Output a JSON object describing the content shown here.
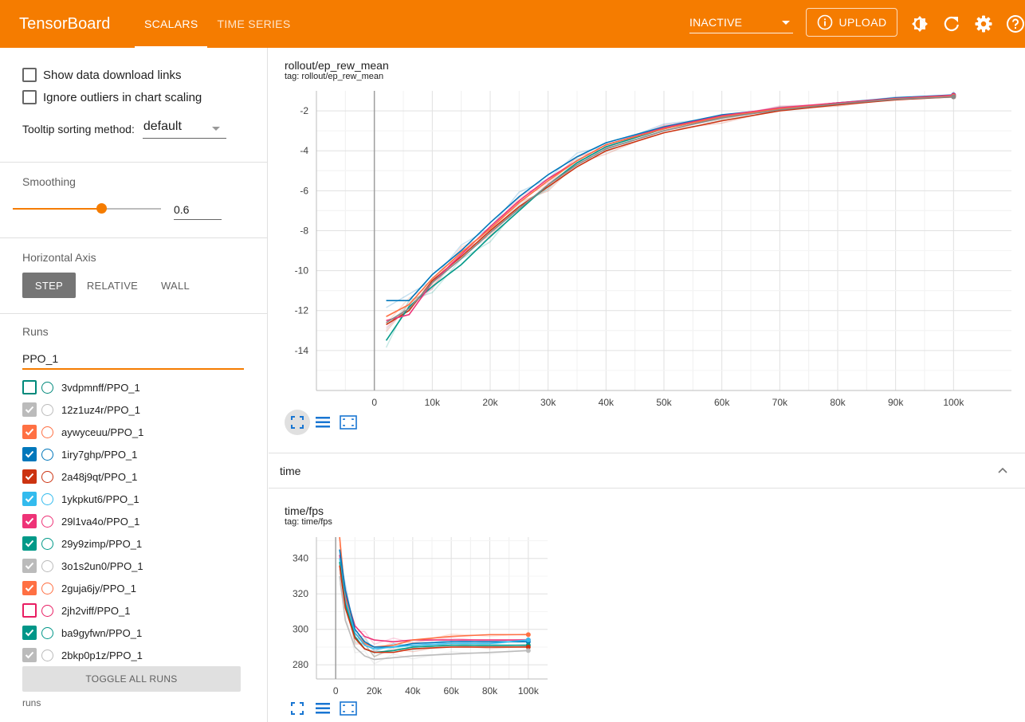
{
  "header": {
    "brand": "TensorBoard",
    "tabs": [
      {
        "label": "SCALARS",
        "active": true
      },
      {
        "label": "TIME SERIES",
        "active": false
      }
    ],
    "status": "INACTIVE",
    "upload_label": "UPLOAD",
    "icons": [
      "info-icon",
      "theme-toggle-icon",
      "refresh-icon",
      "settings-icon",
      "help-icon"
    ]
  },
  "sidebar": {
    "show_download_links": "Show data download links",
    "ignore_outliers": "Ignore outliers in chart scaling",
    "tooltip_label": "Tooltip sorting method:",
    "tooltip_value": "default",
    "smoothing_title": "Smoothing",
    "smoothing_value": "0.6",
    "smoothing_fraction": 0.6,
    "axis_title": "Horizontal Axis",
    "axis_options": [
      "STEP",
      "RELATIVE",
      "WALL"
    ],
    "axis_selected": "STEP",
    "runs_title": "Runs",
    "runs_filter": "PPO_1",
    "runs": [
      {
        "name": "3vdpmnff/PPO_1",
        "checked": false,
        "color": "#00897b"
      },
      {
        "name": "12z1uz4r/PPO_1",
        "checked": true,
        "color": "#bbbbbb"
      },
      {
        "name": "aywyceuu/PPO_1",
        "checked": true,
        "color": "#ff7043"
      },
      {
        "name": "1iry7ghp/PPO_1",
        "checked": true,
        "color": "#0077bb"
      },
      {
        "name": "2a48j9qt/PPO_1",
        "checked": true,
        "color": "#cc3311"
      },
      {
        "name": "1ykpkut6/PPO_1",
        "checked": true,
        "color": "#33bbee"
      },
      {
        "name": "29l1va4o/PPO_1",
        "checked": true,
        "color": "#ee3377"
      },
      {
        "name": "29y9zimp/PPO_1",
        "checked": true,
        "color": "#009988"
      },
      {
        "name": "3o1s2un0/PPO_1",
        "checked": true,
        "color": "#bbbbbb"
      },
      {
        "name": "2guja6jy/PPO_1",
        "checked": true,
        "color": "#ff7043"
      },
      {
        "name": "2jh2viff/PPO_1",
        "checked": false,
        "color": "#e91e63"
      },
      {
        "name": "ba9gyfwn/PPO_1",
        "checked": true,
        "color": "#009688"
      },
      {
        "name": "2bkp0p1z/PPO_1",
        "checked": true,
        "color": "#bbbbbb"
      }
    ],
    "toggle_all": "TOGGLE ALL RUNS",
    "runs_footer": "runs"
  },
  "main": {
    "chart1_title": "rollout/ep_rew_mean",
    "chart1_tag": "tag: rollout/ep_rew_mean",
    "time_section": "time",
    "chart2_title": "time/fps",
    "chart2_tag": "tag: time/fps"
  },
  "chart_data": [
    {
      "type": "line",
      "xlim": [
        -10000,
        110000
      ],
      "ylim": [
        -16,
        -1
      ],
      "x_ticks": [
        0,
        10000,
        20000,
        30000,
        40000,
        50000,
        60000,
        70000,
        80000,
        90000,
        100000
      ],
      "x_tick_labels": [
        "0",
        "10k",
        "20k",
        "30k",
        "40k",
        "50k",
        "60k",
        "70k",
        "80k",
        "90k",
        "100k"
      ],
      "y_ticks": [
        -2,
        -4,
        -6,
        -8,
        -10,
        -12,
        -14
      ],
      "y_tick_labels": [
        "-2",
        "-4",
        "-6",
        "-8",
        "-10",
        "-12",
        "-14"
      ],
      "grid": true,
      "series": [
        {
          "color": "#0077bb",
          "x": [
            2048,
            6000,
            10000,
            15000,
            20000,
            25000,
            30000,
            35000,
            40000,
            50000,
            60000,
            70000,
            80000,
            90000,
            100000
          ],
          "y": [
            -11.5,
            -11.5,
            -10.2,
            -9.0,
            -7.6,
            -6.3,
            -5.2,
            -4.3,
            -3.6,
            -2.8,
            -2.2,
            -1.9,
            -1.6,
            -1.35,
            -1.2
          ]
        },
        {
          "color": "#cc3311",
          "x": [
            2048,
            6000,
            10000,
            15000,
            20000,
            25000,
            30000,
            35000,
            40000,
            50000,
            60000,
            70000,
            80000,
            90000,
            100000
          ],
          "y": [
            -12.7,
            -12.0,
            -10.5,
            -9.3,
            -8.0,
            -6.8,
            -5.8,
            -4.8,
            -4.0,
            -3.1,
            -2.5,
            -2.0,
            -1.7,
            -1.45,
            -1.3
          ]
        },
        {
          "color": "#009988",
          "x": [
            2048,
            6000,
            10000,
            15000,
            20000,
            25000,
            30000,
            35000,
            40000,
            50000,
            60000,
            70000,
            80000,
            90000,
            100000
          ],
          "y": [
            -13.5,
            -11.8,
            -10.8,
            -9.7,
            -8.3,
            -7.0,
            -5.7,
            -4.6,
            -3.8,
            -2.9,
            -2.3,
            -1.9,
            -1.6,
            -1.4,
            -1.25
          ]
        },
        {
          "color": "#ee3377",
          "x": [
            2048,
            6000,
            10000,
            15000,
            20000,
            25000,
            30000,
            35000,
            40000,
            50000,
            60000,
            70000,
            80000,
            90000,
            100000
          ],
          "y": [
            -12.5,
            -12.2,
            -10.6,
            -9.2,
            -7.8,
            -6.5,
            -5.4,
            -4.5,
            -3.7,
            -2.85,
            -2.25,
            -1.85,
            -1.6,
            -1.38,
            -1.22
          ]
        },
        {
          "color": "#ff7043",
          "x": [
            2048,
            6000,
            10000,
            15000,
            20000,
            25000,
            30000,
            35000,
            40000,
            50000,
            60000,
            70000,
            80000,
            90000,
            100000
          ],
          "y": [
            -12.3,
            -11.7,
            -10.4,
            -9.1,
            -7.9,
            -6.6,
            -5.5,
            -4.5,
            -3.7,
            -2.9,
            -2.3,
            -1.9,
            -1.65,
            -1.4,
            -1.27
          ]
        },
        {
          "color": "#888888",
          "x": [
            2048,
            6000,
            10000,
            15000,
            20000,
            25000,
            30000,
            35000,
            40000,
            50000,
            60000,
            70000,
            80000,
            90000,
            100000
          ],
          "y": [
            -12.6,
            -11.9,
            -10.6,
            -9.4,
            -8.1,
            -6.9,
            -5.7,
            -4.7,
            -3.9,
            -3.0,
            -2.35,
            -1.95,
            -1.65,
            -1.42,
            -1.3
          ]
        }
      ]
    },
    {
      "type": "line",
      "xlim": [
        -10000,
        110000
      ],
      "ylim": [
        272,
        352
      ],
      "x_ticks": [
        0,
        20000,
        40000,
        60000,
        80000,
        100000
      ],
      "x_tick_labels": [
        "0",
        "20k",
        "40k",
        "60k",
        "80k",
        "100k"
      ],
      "y_ticks": [
        340,
        320,
        300,
        280
      ],
      "y_tick_labels": [
        "340",
        "320",
        "300",
        "280"
      ],
      "grid": true,
      "series": [
        {
          "color": "#ee3377",
          "x": [
            2048,
            5000,
            10000,
            15000,
            20000,
            30000,
            40000,
            60000,
            80000,
            100000
          ],
          "y": [
            342,
            320,
            302,
            296,
            294,
            293,
            294,
            294,
            294,
            294
          ]
        },
        {
          "color": "#ff7043",
          "x": [
            2048,
            5000,
            10000,
            15000,
            20000,
            30000,
            40000,
            60000,
            80000,
            100000
          ],
          "y": [
            352,
            318,
            298,
            292,
            290,
            291,
            294,
            296,
            297,
            297
          ]
        },
        {
          "color": "#0077bb",
          "x": [
            2048,
            5000,
            10000,
            15000,
            20000,
            30000,
            40000,
            60000,
            80000,
            100000
          ],
          "y": [
            345,
            322,
            300,
            293,
            290,
            290,
            292,
            293,
            293,
            293
          ]
        },
        {
          "color": "#33bbee",
          "x": [
            2048,
            5000,
            10000,
            15000,
            20000,
            30000,
            40000,
            60000,
            80000,
            100000
          ],
          "y": [
            340,
            316,
            298,
            291,
            289,
            290,
            291,
            292,
            292,
            294
          ]
        },
        {
          "color": "#009988",
          "x": [
            2048,
            5000,
            10000,
            15000,
            20000,
            30000,
            40000,
            60000,
            80000,
            100000
          ],
          "y": [
            338,
            314,
            296,
            289,
            287,
            288,
            290,
            291,
            291,
            291
          ]
        },
        {
          "color": "#cc3311",
          "x": [
            2048,
            5000,
            10000,
            15000,
            20000,
            30000,
            40000,
            60000,
            80000,
            100000
          ],
          "y": [
            336,
            312,
            295,
            289,
            287,
            287,
            289,
            290,
            290,
            290
          ]
        },
        {
          "color": "#bbbbbb",
          "x": [
            2048,
            5000,
            10000,
            15000,
            20000,
            30000,
            40000,
            60000,
            80000,
            100000
          ],
          "y": [
            330,
            305,
            290,
            285,
            283,
            284,
            285,
            286,
            287,
            288
          ]
        }
      ]
    }
  ]
}
